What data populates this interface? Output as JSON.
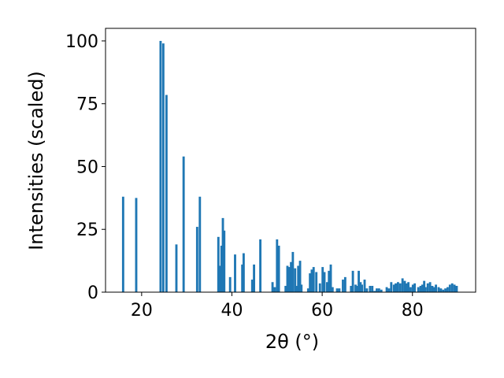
{
  "chart_data": {
    "type": "bar",
    "title": "",
    "xlabel": "2θ (°)",
    "ylabel": "Intensities (scaled)",
    "xlim": [
      12,
      94
    ],
    "ylim": [
      0,
      105
    ],
    "xticks": [
      20,
      40,
      60,
      80
    ],
    "yticks": [
      0,
      25,
      50,
      75,
      100
    ],
    "grid": false,
    "legend": "none",
    "bar_color": "#1f77b4",
    "bar_width": 0.5,
    "x": [
      15.9,
      18.8,
      24.2,
      24.8,
      25.5,
      27.7,
      29.3,
      32.3,
      32.9,
      37.0,
      37.3,
      37.7,
      38.0,
      38.3,
      39.6,
      40.7,
      42.3,
      42.6,
      44.5,
      44.9,
      46.3,
      49.0,
      49.5,
      50.0,
      50.4,
      51.9,
      52.3,
      52.7,
      53.1,
      53.5,
      54.0,
      54.4,
      54.7,
      55.1,
      55.4,
      56.9,
      57.3,
      57.7,
      58.1,
      58.7,
      59.5,
      60.1,
      60.5,
      61.1,
      61.5,
      61.9,
      62.3,
      63.3,
      63.8,
      64.6,
      65.1,
      66.4,
      66.8,
      67.4,
      67.7,
      68.1,
      68.5,
      68.8,
      69.4,
      69.9,
      70.6,
      71.1,
      71.6,
      72.1,
      72.6,
      73.1,
      74.3,
      74.8,
      75.3,
      75.9,
      76.3,
      76.8,
      77.3,
      77.8,
      78.3,
      78.7,
      79.1,
      79.6,
      80.1,
      80.5,
      81.3,
      81.8,
      82.2,
      82.6,
      82.9,
      83.4,
      83.9,
      84.4,
      84.8,
      85.2,
      85.8,
      86.3,
      86.8,
      87.3,
      87.8,
      88.3,
      88.8,
      89.3,
      89.8
    ],
    "values": [
      38,
      37.5,
      100,
      99,
      78.5,
      19,
      54,
      26,
      38,
      22,
      10.5,
      18.5,
      29.5,
      24.5,
      6,
      15,
      11,
      15.5,
      5,
      11,
      21,
      4,
      2,
      21,
      18.5,
      2.5,
      10.5,
      10,
      12,
      16,
      9.5,
      2.5,
      10.5,
      12.5,
      3,
      1.5,
      7.5,
      9,
      10,
      8,
      3.5,
      10,
      8,
      4,
      8.5,
      11,
      2,
      1.5,
      1.5,
      5,
      6,
      2.5,
      8.5,
      3,
      2.5,
      8.5,
      4,
      3,
      5,
      1.5,
      2.5,
      2.5,
      0.5,
      1.5,
      1.5,
      1,
      2,
      1.5,
      4,
      3,
      3.5,
      4,
      3.5,
      5.5,
      4.5,
      3.5,
      4,
      2,
      3,
      3.5,
      2,
      2.5,
      3,
      4.5,
      2,
      3.5,
      4,
      2.5,
      2,
      3,
      2,
      1.5,
      1,
      1.5,
      2,
      3,
      3.5,
      3,
      2.5
    ]
  }
}
